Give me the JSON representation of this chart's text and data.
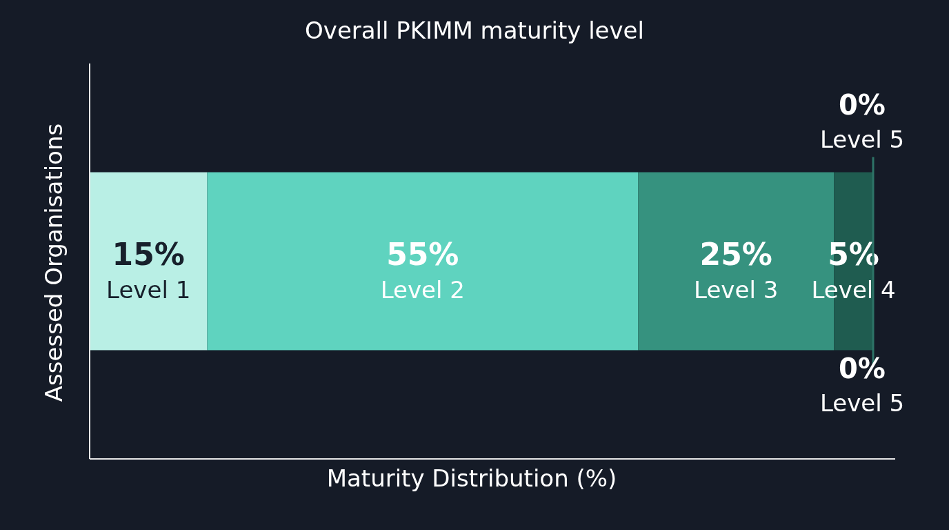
{
  "chart_data": {
    "type": "bar",
    "orientation": "horizontal",
    "stacked": true,
    "title": "Overall PKIMM maturity level",
    "xlabel": "Maturity Distribution (%)",
    "ylabel": "Assessed Organisations",
    "categories": [
      null
    ],
    "series": [
      {
        "name": "Level 1",
        "color": "#b9efe5",
        "values": [
          15
        ],
        "value_labels": [
          "15%"
        ]
      },
      {
        "name": "Level 2",
        "color": "#5fd3bf",
        "values": [
          55
        ],
        "value_labels": [
          "55%"
        ]
      },
      {
        "name": "Level 3",
        "color": "#36927f",
        "values": [
          25
        ],
        "value_labels": [
          "25%"
        ]
      },
      {
        "name": "Level 4",
        "color": "#1f5c50",
        "values": [
          5
        ],
        "value_labels": [
          "5%"
        ]
      },
      {
        "name": "Level 5",
        "color": "#2d7366",
        "values": [
          0
        ],
        "value_labels": [
          "0%"
        ]
      }
    ]
  }
}
